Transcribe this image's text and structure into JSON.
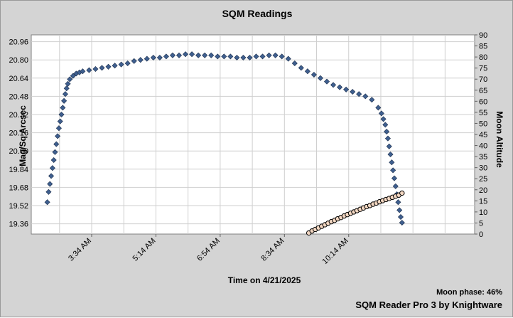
{
  "chart_data": {
    "type": "scatter",
    "title": "SQM Readings",
    "xlabel": "Time on 4/21/2025",
    "ylabel": "Mag/Sq Arcsec",
    "y2label": "Moon Altitude",
    "footer_phase": "Moon phase: 46%",
    "footer_app": "SQM Reader Pro 3 by Knightware",
    "x_unit": "minutes after midnight",
    "xlim": [
      120,
      810
    ],
    "x_ticks": [
      {
        "value": 214,
        "label": "3:34 AM"
      },
      {
        "value": 314,
        "label": "5:14 AM"
      },
      {
        "value": 414,
        "label": "6:54 AM"
      },
      {
        "value": 514,
        "label": "8:34 AM"
      },
      {
        "value": 614,
        "label": "10:14 AM"
      }
    ],
    "ylim": [
      19.27,
      21.02
    ],
    "y_ticks": [
      19.36,
      19.52,
      19.68,
      19.84,
      20.0,
      20.16,
      20.32,
      20.48,
      20.64,
      20.8,
      20.96
    ],
    "y2lim": [
      0,
      90
    ],
    "y2_ticks": [
      0,
      5,
      10,
      15,
      20,
      25,
      30,
      35,
      40,
      45,
      50,
      55,
      60,
      65,
      70,
      75,
      80,
      85,
      90
    ],
    "grid": true,
    "colors": {
      "background": "#d4d4d4",
      "plot_background": "#ffffff",
      "sqm_marker": "#3f5f8f",
      "moon_marker_fill": "#f3d7c2",
      "moon_marker_stroke": "#000000"
    },
    "series": [
      {
        "key": "sqm",
        "axis": "left",
        "marker": "diamond",
        "x": [
          145,
          147,
          149,
          151,
          153,
          155,
          157,
          159,
          161,
          163,
          165,
          167,
          169,
          171,
          173,
          175,
          177,
          180,
          185,
          190,
          195,
          200,
          210,
          220,
          230,
          240,
          250,
          260,
          270,
          280,
          290,
          300,
          310,
          320,
          330,
          340,
          350,
          360,
          370,
          380,
          390,
          400,
          410,
          420,
          430,
          440,
          450,
          460,
          470,
          480,
          490,
          500,
          510,
          520,
          530,
          540,
          550,
          560,
          570,
          580,
          590,
          600,
          610,
          620,
          630,
          640,
          650,
          660,
          665,
          668,
          671,
          673,
          675,
          677,
          679,
          681,
          683,
          685,
          687,
          689,
          691,
          693,
          695,
          697
        ],
        "values": [
          19.55,
          19.64,
          19.71,
          19.78,
          19.85,
          19.92,
          19.99,
          20.06,
          20.13,
          20.2,
          20.26,
          20.32,
          20.38,
          20.44,
          20.5,
          20.55,
          20.59,
          20.63,
          20.66,
          20.68,
          20.69,
          20.7,
          20.71,
          20.72,
          20.73,
          20.74,
          20.75,
          20.76,
          20.77,
          20.79,
          20.8,
          20.81,
          20.82,
          20.82,
          20.83,
          20.84,
          20.84,
          20.85,
          20.85,
          20.84,
          20.84,
          20.84,
          20.83,
          20.83,
          20.83,
          20.82,
          20.82,
          20.82,
          20.83,
          20.83,
          20.84,
          20.84,
          20.83,
          20.81,
          20.77,
          20.73,
          20.7,
          20.67,
          20.64,
          20.61,
          20.58,
          20.56,
          20.54,
          20.52,
          20.5,
          20.48,
          20.45,
          20.38,
          20.33,
          20.28,
          20.23,
          20.17,
          20.11,
          20.04,
          19.97,
          19.9,
          19.83,
          19.76,
          19.69,
          19.62,
          19.55,
          19.48,
          19.42,
          19.37
        ]
      },
      {
        "key": "moon",
        "axis": "right",
        "marker": "circle",
        "x": [
          552,
          557,
          562,
          567,
          572,
          577,
          582,
          587,
          592,
          597,
          602,
          607,
          612,
          617,
          622,
          627,
          632,
          637,
          642,
          647,
          652,
          657,
          662,
          667,
          672,
          677,
          682,
          687,
          692,
          697
        ],
        "values": [
          0.5,
          1.4,
          2.1,
          2.8,
          3.5,
          4.2,
          4.9,
          5.6,
          6.2,
          6.9,
          7.5,
          8.2,
          8.8,
          9.4,
          10.0,
          10.6,
          11.2,
          11.8,
          12.4,
          12.9,
          13.5,
          14.0,
          14.6,
          15.1,
          15.6,
          16.1,
          16.6,
          17.1,
          17.6,
          18.5
        ]
      }
    ]
  }
}
